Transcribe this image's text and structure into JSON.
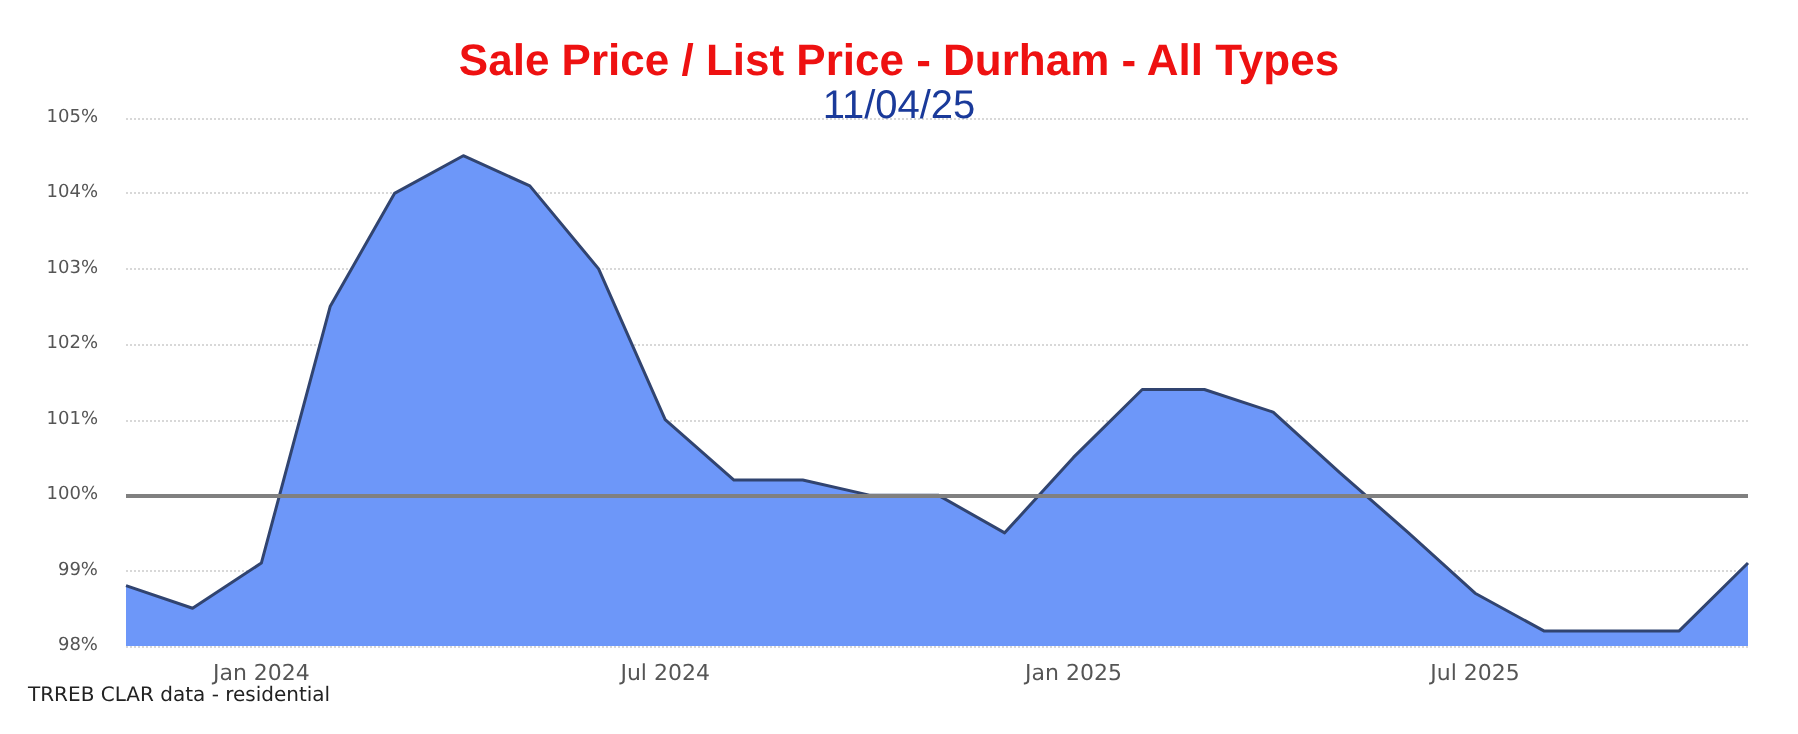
{
  "chart_data": {
    "type": "area",
    "title": "Sale Price / List Price - Durham - All Types",
    "subtitle": "11/04/25",
    "x": [
      "2023-11",
      "2023-12",
      "2024-01",
      "2024-02",
      "2024-03",
      "2024-04",
      "2024-05",
      "2024-06",
      "2024-07",
      "2024-08",
      "2024-09",
      "2024-10",
      "2024-11",
      "2024-12",
      "2025-01",
      "2025-02",
      "2025-03",
      "2025-04",
      "2025-05",
      "2025-06",
      "2025-07",
      "2025-08",
      "2025-09",
      "2025-10",
      "2025-11"
    ],
    "series": [
      {
        "color": "#6d97f9",
        "values": [
          98.8,
          98.5,
          99.1,
          102.5,
          104.0,
          104.5,
          104.1,
          103.0,
          101.0,
          100.2,
          100.2,
          100.0,
          100.0,
          99.5,
          100.5,
          101.4,
          101.4,
          101.1,
          100.3,
          99.5,
          98.7,
          98.2,
          98.2,
          98.2,
          99.1
        ]
      }
    ],
    "xlim": [
      "2023-11",
      "2025-11"
    ],
    "xticks": [
      {
        "value": "2024-01",
        "label": "Jan 2024"
      },
      {
        "value": "2024-07",
        "label": "Jul 2024"
      },
      {
        "value": "2025-01",
        "label": "Jan 2025"
      },
      {
        "value": "2025-07",
        "label": "Jul 2025"
      }
    ],
    "ylim": [
      98,
      105
    ],
    "yticks": [
      {
        "value": 98,
        "label": "98%"
      },
      {
        "value": 99,
        "label": "99%"
      },
      {
        "value": 100,
        "label": "100%"
      },
      {
        "value": 101,
        "label": "101%"
      },
      {
        "value": 102,
        "label": "102%"
      },
      {
        "value": 103,
        "label": "103%"
      },
      {
        "value": 104,
        "label": "104%"
      },
      {
        "value": 105,
        "label": "105%"
      }
    ],
    "ref_lines": [
      {
        "axis": "y",
        "value": 100,
        "color": "#808080"
      }
    ],
    "grid": "y",
    "marker": "none",
    "annotations": [
      "TRREB CLAR data - residential"
    ]
  }
}
